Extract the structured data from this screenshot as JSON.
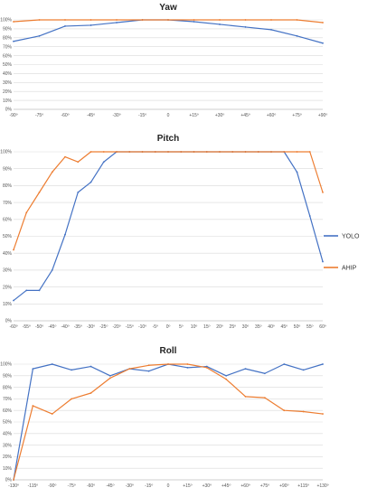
{
  "chart_data": [
    {
      "type": "line",
      "title": "Yaw",
      "xlabel": "",
      "ylabel": "",
      "ylim": [
        0,
        100
      ],
      "y_ticks": [
        "0%",
        "10%",
        "20%",
        "30%",
        "40%",
        "50%",
        "60%",
        "70%",
        "80%",
        "90%",
        "100%"
      ],
      "categories": [
        "-90º",
        "-75º",
        "-60º",
        "-45º",
        "-30º",
        "-15º",
        "0",
        "+15º",
        "+30º",
        "+45º",
        "+60º",
        "+75º",
        "+90º"
      ],
      "series": [
        {
          "name": "YOLO",
          "color": "#4472c4",
          "values": [
            76,
            82,
            93,
            94,
            97,
            100,
            100,
            98,
            95,
            92,
            89,
            82,
            74
          ]
        },
        {
          "name": "AHIP",
          "color": "#ed7d31",
          "values": [
            98,
            100,
            100,
            100,
            100,
            100,
            100,
            100,
            100,
            100,
            100,
            100,
            97
          ]
        }
      ],
      "legend": "none",
      "grid": true
    },
    {
      "type": "line",
      "title": "Pitch",
      "xlabel": "",
      "ylabel": "",
      "ylim": [
        0,
        100
      ],
      "y_ticks": [
        "0%",
        "10%",
        "20%",
        "30%",
        "40%",
        "50%",
        "60%",
        "70%",
        "80%",
        "90%",
        "100%"
      ],
      "categories": [
        "-60º",
        "-55º",
        "-50º",
        "-45º",
        "-40º",
        "-35º",
        "-30º",
        "-25º",
        "-20º",
        "-15º",
        "-10º",
        "-5º",
        "0º",
        "5º",
        "10º",
        "15º",
        "20º",
        "25º",
        "30º",
        "35º",
        "40º",
        "45º",
        "50º",
        "55º",
        "60º"
      ],
      "series": [
        {
          "name": "YOLO",
          "color": "#4472c4",
          "values": [
            12,
            18,
            18,
            30,
            51,
            76,
            82,
            94,
            100,
            100,
            100,
            100,
            100,
            100,
            100,
            100,
            100,
            100,
            100,
            100,
            100,
            100,
            88,
            62,
            35
          ]
        },
        {
          "name": "AHIP",
          "color": "#ed7d31",
          "values": [
            42,
            64,
            76,
            88,
            97,
            94,
            100,
            100,
            100,
            100,
            100,
            100,
            100,
            100,
            100,
            100,
            100,
            100,
            100,
            100,
            100,
            100,
            100,
            100,
            76
          ]
        }
      ],
      "legend": "right",
      "grid": true
    },
    {
      "type": "line",
      "title": "Roll",
      "xlabel": "",
      "ylabel": "",
      "ylim": [
        0,
        100
      ],
      "y_ticks": [
        "0%",
        "10%",
        "20%",
        "30%",
        "40%",
        "50%",
        "60%",
        "70%",
        "80%",
        "90%",
        "100%"
      ],
      "categories": [
        "-130º",
        "-115º",
        "-90º",
        "-75º",
        "-60º",
        "-45º",
        "-30º",
        "-15º",
        "0",
        "+15º",
        "+30º",
        "+45º",
        "+60º",
        "+75º",
        "+90º",
        "+115º",
        "+130º"
      ],
      "series": [
        {
          "name": "YOLO",
          "color": "#4472c4",
          "values": [
            0,
            96,
            100,
            95,
            98,
            90,
            96,
            94,
            100,
            97,
            98,
            90,
            96,
            92,
            100,
            95,
            100
          ]
        },
        {
          "name": "AHIP",
          "color": "#ed7d31",
          "values": [
            0,
            64,
            57,
            70,
            75,
            88,
            96,
            99,
            100,
            100,
            97,
            87,
            72,
            71,
            60,
            59,
            57
          ]
        }
      ],
      "legend": "none",
      "grid": true
    }
  ],
  "legend": {
    "items": [
      {
        "label": "YOLO",
        "color": "#4472c4"
      },
      {
        "label": "AHIP",
        "color": "#ed7d31"
      }
    ]
  }
}
